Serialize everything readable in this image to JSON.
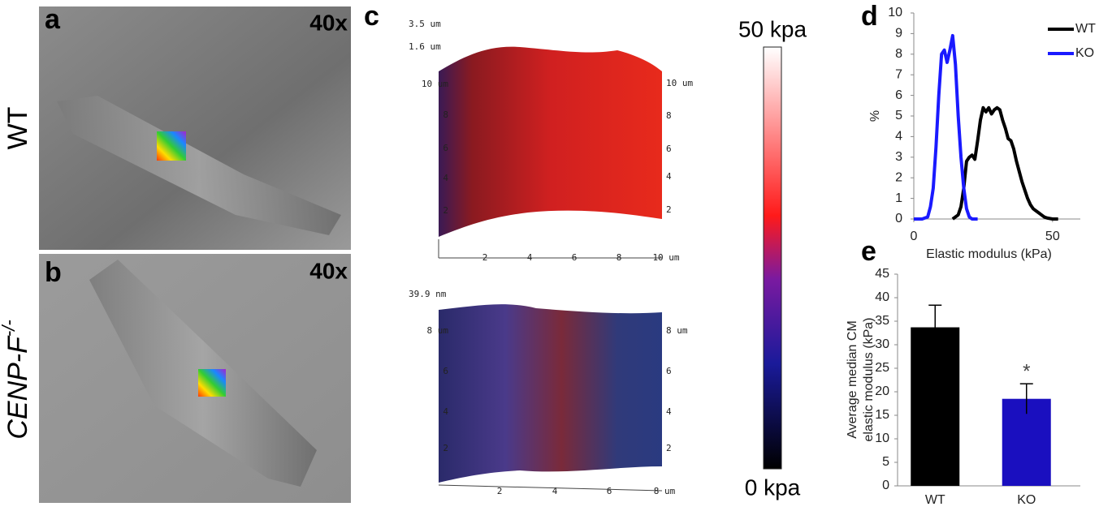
{
  "panels": {
    "a": {
      "label": "a",
      "magnification": "40x",
      "side_label": "WT"
    },
    "b": {
      "label": "b",
      "magnification": "40x",
      "side_label": "CENP-F",
      "side_label_sup": "-/-"
    },
    "c": {
      "label": "c",
      "top": {
        "z_labels": [
          "3.5 um",
          "1.6 um"
        ],
        "left_ticks": [
          "2",
          "4",
          "6",
          "8",
          "10 um"
        ],
        "right_ticks": [
          "2",
          "4",
          "6",
          "8",
          "10 um"
        ],
        "x_ticks": [
          "2",
          "4",
          "6",
          "8",
          "10 um"
        ]
      },
      "bottom": {
        "z_labels": [
          "39.9 nm"
        ],
        "left_ticks": [
          "2",
          "4",
          "6",
          "8 um"
        ],
        "right_ticks": [
          "2",
          "4",
          "6",
          "8 um"
        ],
        "x_ticks": [
          "2",
          "4",
          "6",
          "8 um"
        ]
      },
      "colorbar": {
        "max_label": "50 kpa",
        "min_label": "0 kpa"
      }
    },
    "d": {
      "label": "d"
    },
    "e": {
      "label": "e"
    }
  },
  "chart_data": [
    {
      "type": "line",
      "xlabel": "Elastic modulus (kPa)",
      "ylabel": "%",
      "xlim": [
        0,
        60
      ],
      "xticks": [
        0,
        50
      ],
      "ylim": [
        0,
        10
      ],
      "yticks": [
        0,
        1,
        2,
        3,
        4,
        5,
        6,
        7,
        8,
        9,
        10
      ],
      "legend": "top-right",
      "series": [
        {
          "name": "WT",
          "color": "#000000",
          "x": [
            14,
            16,
            17,
            18,
            19,
            20,
            21,
            22,
            23,
            24,
            25,
            26,
            27,
            28,
            29,
            30,
            31,
            32,
            33,
            34,
            35,
            36,
            37,
            38,
            39,
            40,
            41,
            42,
            43,
            44,
            45,
            46,
            47,
            48,
            50,
            52
          ],
          "values": [
            0,
            0.2,
            0.6,
            1.5,
            2.8,
            3.0,
            3.1,
            2.9,
            3.8,
            4.8,
            5.4,
            5.2,
            5.4,
            5.1,
            5.3,
            5.4,
            5.3,
            4.8,
            4.4,
            3.9,
            3.8,
            3.4,
            2.8,
            2.3,
            1.8,
            1.4,
            1.0,
            0.7,
            0.5,
            0.4,
            0.3,
            0.2,
            0.1,
            0.05,
            0,
            0
          ]
        },
        {
          "name": "KO",
          "color": "#1a1aff",
          "x": [
            0,
            3,
            5,
            6,
            7,
            8,
            9,
            10,
            11,
            12,
            13,
            14,
            15,
            16,
            17,
            18,
            19,
            20,
            21,
            23
          ],
          "values": [
            0,
            0,
            0.1,
            0.6,
            1.5,
            3.5,
            6.0,
            8.0,
            8.2,
            7.6,
            8.2,
            8.9,
            7.5,
            5.0,
            3.0,
            1.5,
            0.5,
            0.1,
            0,
            0
          ]
        }
      ]
    },
    {
      "type": "bar",
      "ylabel": [
        "Average median CM",
        "elastic modulus (kPa)"
      ],
      "categories": [
        "WT",
        "KO"
      ],
      "values": [
        33.7,
        18.5
      ],
      "errors": [
        4.7,
        3.2
      ],
      "colors": [
        "#000000",
        "#1a0fbf"
      ],
      "annotation": "*",
      "ylim": [
        0,
        45
      ],
      "yticks": [
        0,
        5,
        10,
        15,
        20,
        25,
        30,
        35,
        40,
        45
      ]
    }
  ]
}
